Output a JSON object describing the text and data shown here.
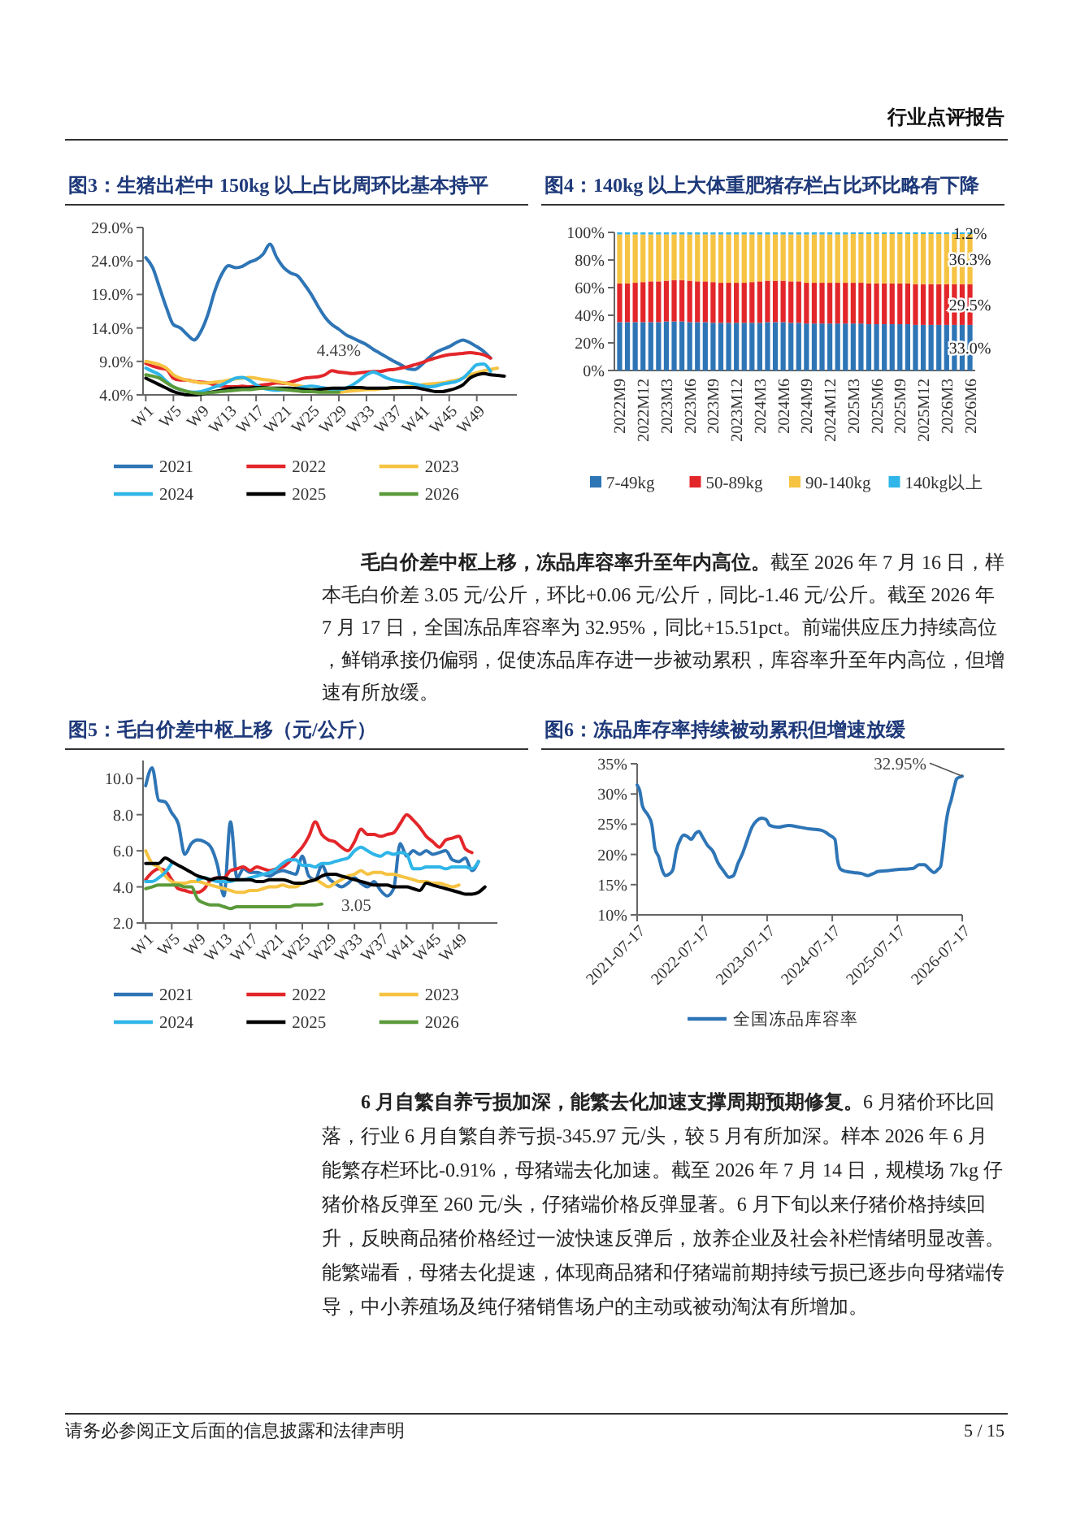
{
  "chart_data": [
    {
      "type": "line",
      "title": "图3：生猪出栏中 150kg 以上占比周环比基本持平",
      "categories": [
        "W1",
        null,
        null,
        null,
        "W5",
        null,
        null,
        null,
        "W9",
        null,
        null,
        null,
        "W13",
        null,
        null,
        null,
        "W17",
        null,
        null,
        null,
        "W21",
        null,
        null,
        null,
        "W25",
        null,
        null,
        null,
        "W29",
        null,
        null,
        null,
        "W33",
        null,
        null,
        null,
        "W37",
        null,
        null,
        null,
        "W41",
        null,
        null,
        null,
        "W45",
        null,
        null,
        null,
        "W49",
        null,
        null,
        null,
        null
      ],
      "ylim": [
        4,
        29
      ],
      "yticks": [
        {
          "value": 4,
          "label": "4.0%"
        },
        {
          "value": 9,
          "label": "9.0%"
        },
        {
          "value": 14,
          "label": "14.0%"
        },
        {
          "value": 19,
          "label": "19.0%"
        },
        {
          "value": 24,
          "label": "24.0%"
        },
        {
          "value": 29,
          "label": "29.0%"
        }
      ],
      "legend": "bottom",
      "annotations": [
        "4.43%"
      ],
      "series": [
        {
          "name": "2021",
          "color": "#2e75b6",
          "values": [
            24.5,
            23,
            20,
            17,
            14.5,
            14,
            13,
            12.2,
            13.5,
            16,
            19.5,
            22,
            23.3,
            23,
            23.2,
            23.8,
            24.2,
            25,
            26.5,
            24.5,
            23,
            22.2,
            21.8,
            20.5,
            19,
            17.2,
            15.6,
            14.5,
            13.8,
            13,
            12.5,
            12,
            11.5,
            10.8,
            10.2,
            9.6,
            9,
            8.5,
            7.9,
            7.8,
            8.5,
            9.5,
            10.3,
            10.8,
            11.2,
            11.8,
            12.2,
            11.8,
            11.2,
            10.5,
            9.5,
            null,
            null
          ]
        },
        {
          "name": "2022",
          "color": "#e3262a",
          "values": [
            8.7,
            8.3,
            8,
            7.8,
            6.5,
            6.2,
            6.2,
            6,
            5.9,
            5.8,
            5.5,
            5.3,
            5.2,
            5.2,
            5.3,
            5.2,
            5.3,
            5.5,
            5.6,
            5.8,
            5.7,
            5.9,
            6.2,
            6.5,
            6.6,
            6.7,
            7,
            7.6,
            7.4,
            7.3,
            7.2,
            7.3,
            7.4,
            7.5,
            7.5,
            7.7,
            7.8,
            8,
            8.2,
            8.5,
            8.8,
            9.2,
            9.5,
            9.8,
            10,
            10.1,
            10.2,
            10.3,
            10.2,
            10,
            9.5,
            null,
            null
          ]
        },
        {
          "name": "2023",
          "color": "#f6c342",
          "values": [
            9,
            8.8,
            8.5,
            8,
            7,
            6.5,
            6.2,
            6,
            5.8,
            5.8,
            5.9,
            6,
            6.2,
            6.4,
            6.5,
            6.6,
            6.5,
            6.3,
            6.2,
            6,
            5.8,
            5.6,
            5.4,
            5.2,
            5,
            4.8,
            4.6,
            4.5,
            4.4,
            4.5,
            4.6,
            4.7,
            4.8,
            4.8,
            4.9,
            5,
            5,
            5.1,
            5.2,
            5.3,
            5.5,
            5.6,
            5.7,
            5.8,
            6,
            6.2,
            6.5,
            7,
            7.3,
            7.6,
            7.8,
            8,
            null
          ]
        },
        {
          "name": "2024",
          "color": "#2fb5e8",
          "values": [
            8,
            7.5,
            7,
            6,
            5.2,
            4.8,
            4.5,
            4.4,
            4.5,
            4.8,
            5.2,
            5.5,
            6,
            6.5,
            6.6,
            6.2,
            5.5,
            5,
            4.8,
            4.7,
            4.8,
            4.9,
            5,
            5.2,
            5.3,
            5.2,
            5,
            4.8,
            4.8,
            5,
            5.5,
            6.2,
            7,
            7.4,
            7,
            6.5,
            6.2,
            6,
            5.8,
            5.6,
            5.4,
            5.2,
            5.3,
            5.6,
            5.8,
            6,
            6.5,
            7.5,
            8.5,
            8.6,
            7.5,
            null,
            null
          ]
        },
        {
          "name": "2025",
          "color": "#000000",
          "values": [
            6.5,
            6,
            5.5,
            5,
            4.5,
            4.2,
            4,
            4,
            4.1,
            4.3,
            4.5,
            4.7,
            4.9,
            5,
            5,
            5,
            5.1,
            5.1,
            5,
            5,
            5,
            5,
            4.9,
            4.8,
            4.7,
            4.8,
            4.9,
            5,
            5,
            5,
            5.1,
            5.1,
            5,
            5,
            5,
            5,
            5.1,
            5.1,
            5.1,
            5.1,
            4.9,
            4.7,
            4.5,
            4.5,
            4.7,
            5,
            5.5,
            6.5,
            7,
            7.2,
            7,
            6.9,
            6.8
          ]
        },
        {
          "name": "2026",
          "color": "#5b9a3a",
          "values": [
            7,
            6.8,
            6.5,
            5.8,
            5.2,
            4.8,
            4.5,
            4.3,
            4.2,
            4.3,
            4.4,
            4.5,
            4.6,
            4.7,
            4.8,
            4.8,
            4.9,
            5,
            5,
            4.9,
            4.8,
            4.7,
            4.6,
            4.5,
            4.5,
            4.4,
            4.4,
            4.4,
            4.43,
            null,
            null,
            null,
            null,
            null,
            null,
            null,
            null,
            null,
            null,
            null,
            null,
            null,
            null,
            null,
            null,
            null,
            null,
            null,
            null,
            null,
            null,
            null,
            null
          ]
        }
      ]
    },
    {
      "type": "bar",
      "stacked": true,
      "title": "图4：140kg 以上大体重肥猪存栏占比环比略有下降",
      "categories": [
        "2022M9",
        null,
        null,
        "2022M12",
        null,
        null,
        "2023M3",
        null,
        null,
        "2023M6",
        null,
        null,
        "2023M9",
        null,
        null,
        "2023M12",
        null,
        null,
        "2024M3",
        null,
        null,
        "2024M6",
        null,
        null,
        "2024M9",
        null,
        null,
        "2024M12",
        null,
        null,
        "2025M3",
        null,
        null,
        "2025M6",
        null,
        null,
        "2025M9",
        null,
        null,
        "2025M12",
        null,
        null,
        "2026M3",
        null,
        null,
        "2026M6"
      ],
      "ylim": [
        0,
        100
      ],
      "yticks": [
        {
          "value": 0,
          "label": "0%"
        },
        {
          "value": 20,
          "label": "20%"
        },
        {
          "value": 40,
          "label": "40%"
        },
        {
          "value": 60,
          "label": "60%"
        },
        {
          "value": 80,
          "label": "80%"
        },
        {
          "value": 100,
          "label": "100%"
        }
      ],
      "legend": "bottom",
      "series": [
        {
          "name": "7-49kg",
          "color": "#2e75b6",
          "values": [
            35,
            35,
            35,
            35,
            35,
            35,
            35.5,
            35.5,
            35.5,
            35,
            35,
            35,
            34.5,
            34.5,
            34.5,
            34.5,
            34.5,
            34.5,
            34.5,
            35,
            35,
            35,
            34.5,
            34.5,
            34,
            34,
            34,
            34,
            34,
            34,
            34,
            34,
            33.5,
            33.5,
            33.5,
            33.5,
            33.5,
            33.5,
            33,
            33,
            33,
            33,
            33,
            33,
            33,
            33.0
          ],
          "value_labels": [
            null,
            null,
            null,
            null,
            null,
            null,
            null,
            null,
            null,
            null,
            null,
            null,
            null,
            null,
            null,
            null,
            null,
            null,
            null,
            null,
            null,
            null,
            null,
            null,
            null,
            null,
            null,
            null,
            null,
            null,
            null,
            null,
            null,
            null,
            null,
            null,
            null,
            null,
            null,
            null,
            null,
            null,
            null,
            null,
            null,
            "33.0%"
          ]
        },
        {
          "name": "50-89kg",
          "color": "#e3262a",
          "values": [
            28,
            28,
            28.5,
            29,
            29.5,
            29.5,
            29.5,
            30,
            30,
            30,
            29.5,
            29.5,
            29.5,
            29,
            29,
            29,
            29,
            29.5,
            30,
            30,
            30,
            30,
            30,
            30,
            29.5,
            29.5,
            29.5,
            29.5,
            29.5,
            29.5,
            29.5,
            29.5,
            29.5,
            29.5,
            29.5,
            29.5,
            29.5,
            29.5,
            29.5,
            29.5,
            29.5,
            29.5,
            29.5,
            29.5,
            29.5,
            29.5
          ],
          "value_labels": [
            null,
            null,
            null,
            null,
            null,
            null,
            null,
            null,
            null,
            null,
            null,
            null,
            null,
            null,
            null,
            null,
            null,
            null,
            null,
            null,
            null,
            null,
            null,
            null,
            null,
            null,
            null,
            null,
            null,
            null,
            null,
            null,
            null,
            null,
            null,
            null,
            null,
            null,
            null,
            null,
            null,
            null,
            null,
            null,
            null,
            "29.5%"
          ]
        },
        {
          "name": "90-140kg",
          "color": "#f6c342",
          "values": [
            35.5,
            35.5,
            35,
            34.5,
            34,
            34,
            33.5,
            33,
            33,
            33.5,
            34,
            34,
            34.5,
            35,
            35,
            35,
            35,
            34.5,
            34,
            33.5,
            33.5,
            33.5,
            34,
            34,
            35,
            35,
            35,
            35,
            35,
            35,
            35.3,
            35.3,
            35.8,
            35.8,
            35.8,
            35.8,
            35.8,
            35.8,
            36.3,
            36.3,
            36.3,
            36.3,
            36.3,
            36.3,
            36.3,
            36.3
          ],
          "value_labels": [
            null,
            null,
            null,
            null,
            null,
            null,
            null,
            null,
            null,
            null,
            null,
            null,
            null,
            null,
            null,
            null,
            null,
            null,
            null,
            null,
            null,
            null,
            null,
            null,
            null,
            null,
            null,
            null,
            null,
            null,
            null,
            null,
            null,
            null,
            null,
            null,
            null,
            null,
            null,
            null,
            null,
            null,
            null,
            null,
            null,
            "36.3%"
          ]
        },
        {
          "name": "140kg以上",
          "color": "#2fb5e8",
          "values": [
            1.5,
            1.5,
            1.5,
            1.5,
            1.5,
            1.5,
            1.5,
            1.5,
            1.5,
            1.5,
            1.5,
            1.5,
            1.5,
            1.5,
            1.5,
            1.5,
            1.5,
            1.5,
            1.5,
            1.5,
            1.5,
            1.5,
            1.5,
            1.5,
            1.5,
            1.5,
            1.5,
            1.5,
            1.5,
            1.5,
            1.2,
            1.2,
            1.2,
            1.2,
            1.2,
            1.2,
            1.2,
            1.2,
            1.2,
            1.2,
            1.2,
            1.2,
            1.2,
            1.2,
            1.2,
            1.2
          ],
          "value_labels": [
            null,
            null,
            null,
            null,
            null,
            null,
            null,
            null,
            null,
            null,
            null,
            null,
            null,
            null,
            null,
            null,
            null,
            null,
            null,
            null,
            null,
            null,
            null,
            null,
            null,
            null,
            null,
            null,
            null,
            null,
            null,
            null,
            null,
            null,
            null,
            null,
            null,
            null,
            null,
            null,
            null,
            null,
            null,
            null,
            null,
            "1.2%"
          ]
        }
      ]
    },
    {
      "type": "line",
      "title": "图5：毛白价差中枢上移（元/公斤）",
      "categories": [
        "W1",
        null,
        null,
        null,
        "W5",
        null,
        null,
        null,
        "W9",
        null,
        null,
        null,
        "W13",
        null,
        null,
        null,
        "W17",
        null,
        null,
        null,
        "W21",
        null,
        null,
        null,
        "W25",
        null,
        null,
        null,
        "W29",
        null,
        null,
        null,
        "W33",
        null,
        null,
        null,
        "W37",
        null,
        null,
        null,
        "W41",
        null,
        null,
        null,
        "W45",
        null,
        null,
        null,
        "W49",
        null,
        null,
        null,
        null
      ],
      "ylim": [
        2,
        11
      ],
      "yticks": [
        {
          "value": 2,
          "label": "2.0"
        },
        {
          "value": 4,
          "label": "4.0"
        },
        {
          "value": 6,
          "label": "6.0"
        },
        {
          "value": 8,
          "label": "8.0"
        },
        {
          "value": 10,
          "label": "10.0"
        }
      ],
      "legend": "bottom",
      "annotations": [
        "3.05"
      ],
      "series": [
        {
          "name": "2021",
          "color": "#2e75b6",
          "values": [
            9.6,
            10.6,
            8.8,
            8.7,
            8.1,
            7.5,
            5.8,
            6.4,
            6.6,
            6.5,
            6.2,
            5.2,
            3.5,
            7.6,
            4.5,
            5,
            4.8,
            4.8,
            4.7,
            4.6,
            4.8,
            4.9,
            4.8,
            4.7,
            5.7,
            4.6,
            4.4,
            5.2,
            4.5,
            4.2,
            4,
            4.2,
            4.5,
            4.2,
            4,
            4.3,
            3.8,
            3.5,
            3.9,
            6.4,
            5.7,
            6,
            5.8,
            6,
            5.8,
            5.9,
            6,
            5.5,
            5.4,
            5.6,
            4.9,
            5.4,
            null
          ]
        },
        {
          "name": "2022",
          "color": "#e3262a",
          "values": [
            4.4,
            4.8,
            5,
            4.9,
            4.4,
            3.9,
            3.8,
            3.7,
            3.7,
            3.9,
            4.4,
            4.5,
            4.5,
            4.9,
            5,
            5.1,
            4.9,
            5.1,
            5,
            4.9,
            5,
            5.1,
            5.4,
            5.8,
            6.2,
            6.8,
            7.6,
            6.9,
            6.6,
            6.5,
            6.2,
            6,
            6.5,
            7.2,
            6.9,
            6.9,
            6.8,
            6.9,
            7,
            7.5,
            8,
            7.7,
            7.3,
            6.8,
            6.5,
            6.2,
            6.6,
            6.7,
            6.8,
            6.1,
            5.9,
            null,
            null
          ]
        },
        {
          "name": "2023",
          "color": "#f6c342",
          "values": [
            6,
            5.3,
            5.1,
            4.6,
            4.3,
            4.2,
            4.2,
            4.3,
            4.3,
            4.2,
            4.1,
            4,
            3.9,
            3.8,
            3.7,
            3.7,
            3.8,
            3.8,
            3.9,
            4,
            4,
            4.1,
            4,
            4,
            4.2,
            4.3,
            4.4,
            4.2,
            4,
            4.2,
            4.4,
            4.6,
            4.7,
            4.9,
            4.7,
            4.8,
            4.8,
            4.7,
            4.7,
            4.6,
            4.5,
            4.4,
            4.3,
            4.3,
            4.2,
            4.2,
            4.1,
            4,
            4.1,
            null,
            null,
            null,
            null
          ]
        },
        {
          "name": "2024",
          "color": "#2fb5e8",
          "values": [
            4.3,
            4.3,
            4.5,
            4.8,
            5.3,
            null,
            null,
            null,
            4.4,
            4.5,
            4.4,
            4.3,
            4.3,
            4.3,
            4.4,
            4.4,
            4.5,
            4.6,
            4.7,
            4.8,
            5,
            5.3,
            5.5,
            5.5,
            5.2,
            5.2,
            5.1,
            5.3,
            5.3,
            5.4,
            5.5,
            5.6,
            6,
            6.2,
            6,
            5.8,
            5.7,
            5.9,
            5.8,
            5.9,
            5.8,
            5,
            5,
            5.1,
            5.1,
            5.1,
            5,
            5.1,
            5.1,
            5.1,
            5,
            5.4,
            null
          ]
        },
        {
          "name": "2025",
          "color": "#000000",
          "values": [
            5.3,
            5.3,
            5.3,
            5.6,
            5.4,
            5.2,
            5,
            4.8,
            4.6,
            4.5,
            4.4,
            4.5,
            4.5,
            4.4,
            4.4,
            4.4,
            4.4,
            4.3,
            4.3,
            4.4,
            4.4,
            4.4,
            4.3,
            4.2,
            4.2,
            4.3,
            4.4,
            4.6,
            4.7,
            4.7,
            4.6,
            4.5,
            4.4,
            4.3,
            4.2,
            4.1,
            4.1,
            4.1,
            4,
            4,
            4,
            3.9,
            3.8,
            4.2,
            4.1,
            4,
            3.9,
            3.8,
            3.7,
            3.6,
            3.6,
            3.7,
            4
          ]
        },
        {
          "name": "2026",
          "color": "#5b9a3a",
          "values": [
            3.9,
            4,
            4.1,
            4.1,
            4.1,
            4.1,
            4,
            4,
            3.3,
            3.1,
            3,
            3,
            2.9,
            2.8,
            2.9,
            2.9,
            2.9,
            2.9,
            2.9,
            2.9,
            2.9,
            2.9,
            2.9,
            3,
            3,
            3,
            3,
            3.05,
            null,
            null,
            null,
            null,
            null,
            null,
            null,
            null,
            null,
            null,
            null,
            null,
            null,
            null,
            null,
            null,
            null,
            null,
            null,
            null,
            null,
            null,
            null,
            null,
            null
          ]
        }
      ]
    },
    {
      "type": "line",
      "title": "图6：冻品库存率持续被动累积但增速放缓",
      "xlim": [
        "2021-07-17",
        "2026-07-17"
      ],
      "xticks": [
        "2021-07-17",
        "2022-07-17",
        "2023-07-17",
        "2024-07-17",
        "2025-07-17",
        "2026-07-17"
      ],
      "ylim": [
        10,
        35
      ],
      "yticks": [
        {
          "value": 10,
          "label": "10%"
        },
        {
          "value": 15,
          "label": "15%"
        },
        {
          "value": 20,
          "label": "20%"
        },
        {
          "value": 25,
          "label": "25%"
        },
        {
          "value": 30,
          "label": "30%"
        },
        {
          "value": 35,
          "label": "35%"
        }
      ],
      "legend": "bottom",
      "annotations": [
        {
          "text": "32.95%",
          "x": "2026-07-17",
          "y": 32.95
        }
      ],
      "series": [
        {
          "name": "全国冻品库容率",
          "color": "#2e75b6",
          "x": [
            "2021-07-17",
            "2021-08-01",
            "2021-08-16",
            "2021-09-16",
            "2021-10-07",
            "2021-10-25",
            "2021-11-16",
            "2021-12-04",
            "2021-12-22",
            "2022-01-16",
            "2022-02-03",
            "2022-02-21",
            "2022-03-17",
            "2022-04-05",
            "2022-04-23",
            "2022-05-17",
            "2022-06-11",
            "2022-06-29",
            "2022-07-17",
            "2022-08-16",
            "2022-09-16",
            "2022-10-16",
            "2022-11-16",
            "2022-12-16",
            "2023-01-09",
            "2023-02-03",
            "2023-02-27",
            "2023-03-23",
            "2023-04-23",
            "2023-05-17",
            "2023-06-17",
            "2023-07-11",
            "2023-08-01",
            "2023-09-16",
            "2023-11-16",
            "2024-01-16",
            "2024-03-17",
            "2024-05-17",
            "2024-07-02",
            "2024-08-01",
            "2024-08-16",
            "2024-09-04",
            "2024-10-01",
            "2024-11-16",
            "2025-01-01",
            "2025-01-31",
            "2025-03-02",
            "2025-04-01",
            "2025-05-17",
            "2025-07-17",
            "2025-09-16",
            "2025-10-16",
            "2025-11-16",
            "2025-12-16",
            "2026-01-16",
            "2026-02-09",
            "2026-03-02",
            "2026-03-17",
            "2026-04-01",
            "2026-04-16",
            "2026-05-01",
            "2026-05-16",
            "2026-06-01",
            "2026-06-16",
            "2026-07-03",
            "2026-07-17"
          ],
          "values": [
            31.5,
            30.5,
            28,
            26.5,
            25,
            21,
            19.5,
            17.5,
            16.5,
            16.8,
            17.5,
            20.5,
            22.5,
            23.2,
            23,
            22.5,
            23.5,
            23.8,
            23,
            21.5,
            20.5,
            18.5,
            17.2,
            16.2,
            16.5,
            18.5,
            20,
            22,
            24.5,
            25.5,
            26,
            25.8,
            24.8,
            24.5,
            24.8,
            24.5,
            24.2,
            24,
            23.2,
            22.5,
            19,
            17.5,
            17.2,
            17,
            16.8,
            16.5,
            16.8,
            17.2,
            17.3,
            17.5,
            17.6,
            17.7,
            18.3,
            18.3,
            17.5,
            17,
            17.5,
            18,
            21,
            25,
            27.5,
            29,
            31,
            32.5,
            32.8,
            32.95
          ]
        }
      ]
    },
    {
      "type": "other",
      "annotations": [
        "行业点评报告",
        "毛白价差中枢上移，冻品库容率升至年内高位。",
        "截至 2026 年 7 月 16 日，样本毛白价差 3.05 元/公斤，环比+0.06 元/公斤，同比-1.46 元/公斤。截至 2026 年 7 月 17 日，全国冻品库容率为 32.95%，同比+15.51pct。前端供应压力持续高位，鲜销承接仍偏弱，促使冻品库存进一步被动累积，库容率升至年内高位，但增速有所放缓。",
        "6 月自繁自养亏损加深，能繁去化加速支撑周期预期修复。",
        "6 月猪价环比回落，行业 6 月自繁自养亏损-345.97 元/头，较 5 月有所加深。样本 2026 年 6 月能繁存栏环比-0.91%，母猪端去化加速。截至 2026 年 7 月 14 日，规模场 7kg 仔猪价格反弹至 260 元/头，仔猪端价格反弹显著。6 月下旬以来仔猪价格持续回升，反映商品猪价格经过一波快速反弹后，放养企业及社会补栏情绪明显改善。能繁端看，母猪去化提速，体现商品猪和仔猪端前期持续亏损已逐步向母猪端传导，中小养殖场及纯仔猪销售场户的主动或被动淘汰有所增加。",
        "请务必参阅正文后面的信息披露和法律声明",
        "5 / 15"
      ]
    }
  ]
}
